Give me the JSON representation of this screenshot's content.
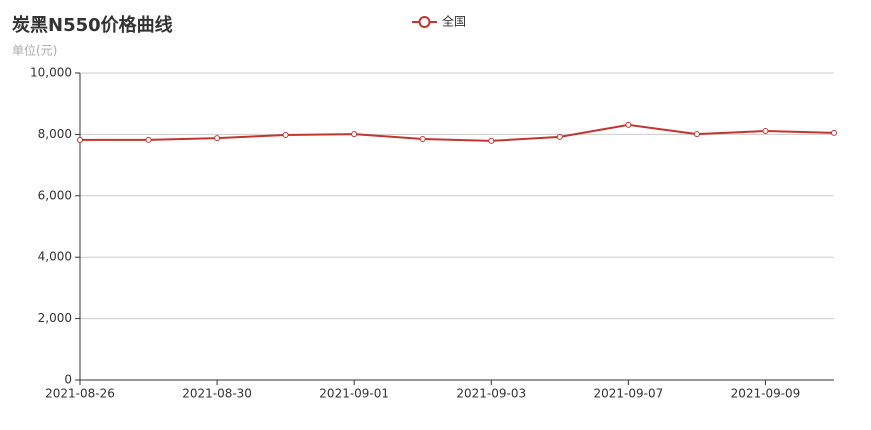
{
  "chart_data": {
    "type": "line",
    "title": "炭黑N550价格曲线",
    "subtitle": "单位(元)",
    "categories": [
      "2021-08-26",
      null,
      "2021-08-30",
      null,
      "2021-09-01",
      null,
      "2021-09-03",
      null,
      "2021-09-07",
      null,
      "2021-09-09",
      null
    ],
    "series": [
      {
        "name": "全国",
        "color": "#c23531",
        "values": [
          7820,
          7820,
          7880,
          7980,
          8010,
          7850,
          7790,
          7920,
          8310,
          8010,
          8110,
          8050
        ]
      }
    ],
    "ylim": [
      0,
      10000
    ],
    "yticks": [
      0,
      {
        "value": 2000,
        "label": "2,000"
      },
      {
        "value": 4000,
        "label": "4,000"
      },
      {
        "value": 6000,
        "label": "6,000"
      },
      {
        "value": 8000,
        "label": "8,000"
      },
      {
        "value": 10000,
        "label": "10,000"
      }
    ],
    "grid": true,
    "legend": "top"
  }
}
